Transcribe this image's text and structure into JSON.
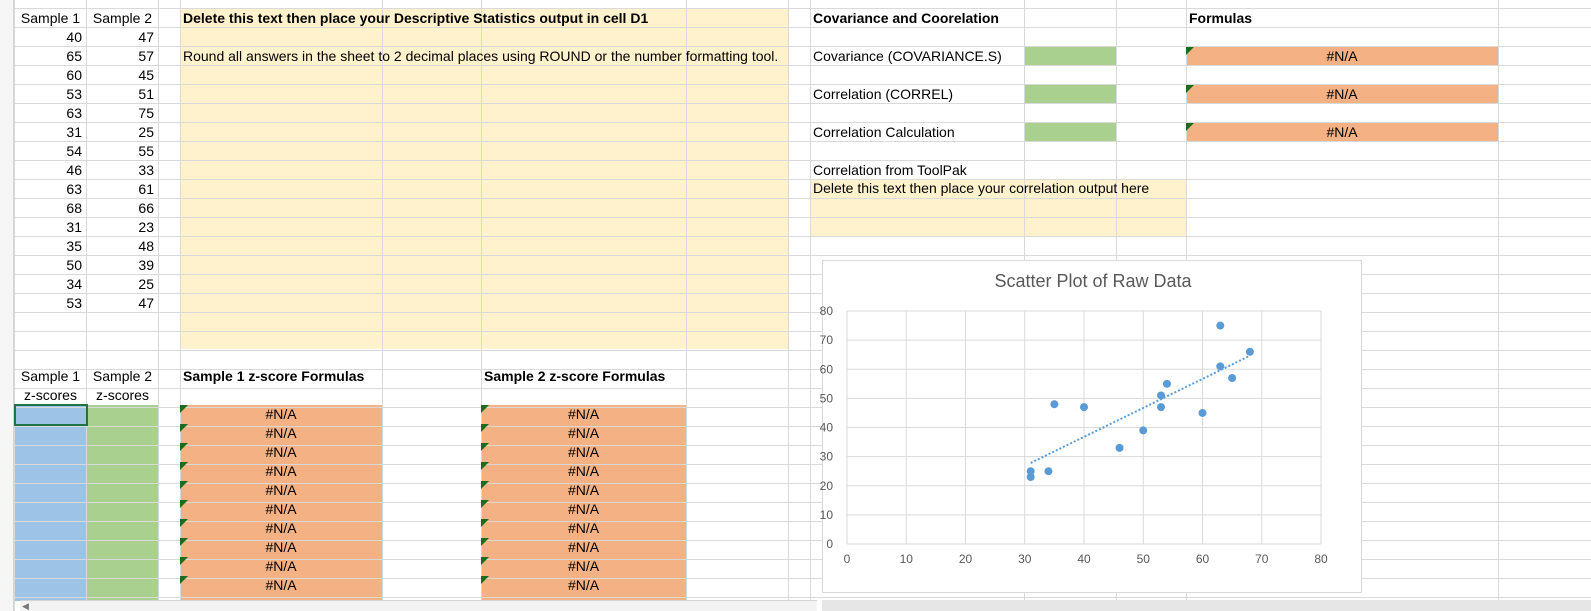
{
  "sheet": {
    "sample_headers": {
      "s1": "Sample 1",
      "s2": "Sample 2"
    },
    "samples": [
      [
        40,
        47
      ],
      [
        65,
        57
      ],
      [
        60,
        45
      ],
      [
        53,
        51
      ],
      [
        63,
        75
      ],
      [
        31,
        25
      ],
      [
        54,
        55
      ],
      [
        46,
        33
      ],
      [
        63,
        61
      ],
      [
        68,
        66
      ],
      [
        31,
        23
      ],
      [
        35,
        48
      ],
      [
        50,
        39
      ],
      [
        34,
        25
      ],
      [
        53,
        47
      ]
    ],
    "desc_instruction": "Delete this text then place your Descriptive Statistics output in cell D1",
    "round_instruction": "Round all answers in the sheet to 2 decimal places using ROUND or the number formatting tool.",
    "cov_header": "Covariance and Coorelation",
    "formulas_header": "Formulas",
    "metrics": [
      {
        "label": "Covariance (COVARIANCE.S)",
        "formula": "#N/A"
      },
      {
        "label": "Correlation (CORREL)",
        "formula": "#N/A"
      },
      {
        "label": "Correlation Calculation",
        "formula": "#N/A"
      }
    ],
    "toolpak_label": "Correlation from ToolPak",
    "toolpak_instruction": "Delete this text then place your correlation output here",
    "z_headers": {
      "s1_line1": "Sample 1",
      "s1_line2": "z-scores",
      "s2_line1": "Sample 2",
      "s2_line2": "z-scores"
    },
    "z_formula_headers": {
      "s1": "Sample 1 z-score Formulas",
      "s2": "Sample 2 z-score Formulas"
    },
    "z_formula_values": [
      "#N/A",
      "#N/A",
      "#N/A",
      "#N/A",
      "#N/A",
      "#N/A",
      "#N/A",
      "#N/A",
      "#N/A",
      "#N/A"
    ]
  },
  "colors": {
    "yellow": "#fff2cc",
    "green": "#a9d08e",
    "orange": "#f4b183",
    "blue": "#9dc3e6",
    "point": "#5b9bd5",
    "gridline": "#d9d9d9"
  },
  "chart_data": {
    "type": "scatter",
    "title": "Scatter Plot of Raw Data",
    "xlim": [
      0,
      80
    ],
    "ylim": [
      0,
      80
    ],
    "x_ticks": [
      0,
      10,
      20,
      30,
      40,
      50,
      60,
      70,
      80
    ],
    "y_ticks": [
      0,
      10,
      20,
      30,
      40,
      50,
      60,
      70,
      80
    ],
    "grid": true,
    "trendline": "linear",
    "points": [
      {
        "x": 40,
        "y": 47
      },
      {
        "x": 65,
        "y": 57
      },
      {
        "x": 60,
        "y": 45
      },
      {
        "x": 53,
        "y": 51
      },
      {
        "x": 63,
        "y": 75
      },
      {
        "x": 31,
        "y": 25
      },
      {
        "x": 54,
        "y": 55
      },
      {
        "x": 46,
        "y": 33
      },
      {
        "x": 63,
        "y": 61
      },
      {
        "x": 68,
        "y": 66
      },
      {
        "x": 31,
        "y": 23
      },
      {
        "x": 35,
        "y": 48
      },
      {
        "x": 50,
        "y": 39
      },
      {
        "x": 34,
        "y": 25
      },
      {
        "x": 53,
        "y": 47
      }
    ]
  }
}
